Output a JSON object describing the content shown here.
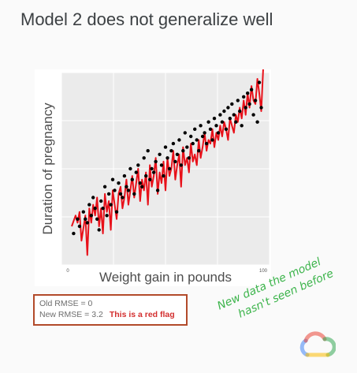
{
  "slide": {
    "title": "Model 2 does not generalize well"
  },
  "rmse_box": {
    "old_line": "Old RMSE = 0",
    "new_line": "New RMSE = 3.2",
    "flag_text": "This is a red flag"
  },
  "annotation": {
    "line1": "New data the model",
    "line2": "hasn't seen before",
    "color": "#3cb44b"
  },
  "logo": {
    "icon": "google-cloud-icon",
    "colors": [
      "#ea4335",
      "#fbbc04",
      "#34a853",
      "#4285f4"
    ]
  },
  "chart_data": {
    "type": "scatter",
    "xlabel": "Weight gain in pounds",
    "ylabel": "Duration of pregnancy",
    "xlim": [
      0,
      100
    ],
    "ylim": [
      0,
      100
    ],
    "x_ticks": [
      "0",
      "100"
    ],
    "grid": true,
    "background": "#ebebeb",
    "line_color": "#e8111a",
    "point_color": "#000000",
    "series": [
      {
        "type": "line",
        "x": [
          2,
          4,
          5,
          6,
          7,
          9,
          10,
          11,
          12,
          13,
          14,
          15,
          16,
          17,
          18,
          19,
          20,
          21,
          22,
          23,
          24,
          25,
          26,
          27,
          28,
          29,
          30,
          31,
          32,
          33,
          34,
          35,
          36,
          37,
          38,
          39,
          40,
          41,
          42,
          43,
          44,
          45,
          46,
          47,
          48,
          49,
          50,
          51,
          52,
          53,
          54,
          55,
          56,
          57,
          58,
          59,
          60,
          61,
          62,
          63,
          64,
          65,
          66,
          67,
          68,
          69,
          70,
          71,
          72,
          73,
          74,
          75,
          76,
          77,
          78,
          79,
          80,
          81,
          82,
          83,
          84,
          85,
          86,
          87,
          88,
          89,
          90,
          91,
          92,
          93,
          94,
          95,
          96,
          97,
          98,
          99,
          100
        ],
        "y": [
          18,
          24,
          20,
          26,
          10,
          24,
          2,
          28,
          20,
          30,
          24,
          34,
          18,
          28,
          14,
          36,
          26,
          32,
          16,
          38,
          30,
          22,
          36,
          40,
          28,
          34,
          44,
          30,
          38,
          46,
          34,
          42,
          50,
          32,
          44,
          38,
          48,
          30,
          52,
          40,
          46,
          56,
          36,
          48,
          42,
          54,
          38,
          56,
          46,
          50,
          60,
          44,
          52,
          58,
          40,
          62,
          52,
          56,
          48,
          64,
          54,
          58,
          52,
          66,
          56,
          62,
          70,
          60,
          66,
          64,
          72,
          62,
          70,
          66,
          74,
          68,
          76,
          72,
          66,
          78,
          74,
          70,
          80,
          76,
          84,
          78,
          88,
          80,
          92,
          84,
          96,
          88,
          86,
          100,
          92,
          82,
          106
        ]
      },
      {
        "type": "scatter",
        "x": [
          3,
          5,
          6,
          8,
          9,
          10,
          11,
          12,
          13,
          14,
          15,
          16,
          17,
          18,
          19,
          20,
          21,
          22,
          23,
          24,
          25,
          26,
          27,
          28,
          29,
          30,
          31,
          32,
          33,
          34,
          35,
          36,
          37,
          38,
          39,
          40,
          41,
          42,
          43,
          44,
          45,
          46,
          47,
          48,
          49,
          50,
          51,
          52,
          53,
          54,
          55,
          56,
          57,
          58,
          59,
          60,
          61,
          62,
          63,
          64,
          65,
          66,
          67,
          68,
          69,
          70,
          71,
          72,
          73,
          74,
          75,
          76,
          77,
          78,
          79,
          80,
          81,
          82,
          83,
          84,
          85,
          86,
          87,
          88,
          89,
          90,
          91,
          92,
          93,
          94,
          95,
          96,
          97,
          98,
          99
        ],
        "y": [
          14,
          22,
          18,
          26,
          22,
          20,
          30,
          24,
          34,
          28,
          22,
          16,
          32,
          28,
          40,
          24,
          36,
          30,
          44,
          38,
          26,
          42,
          36,
          34,
          46,
          40,
          38,
          50,
          44,
          36,
          48,
          52,
          42,
          40,
          56,
          46,
          60,
          44,
          50,
          48,
          54,
          38,
          58,
          52,
          46,
          62,
          56,
          50,
          60,
          64,
          54,
          58,
          66,
          52,
          60,
          70,
          62,
          56,
          68,
          64,
          72,
          66,
          60,
          74,
          68,
          70,
          64,
          76,
          72,
          66,
          78,
          74,
          70,
          80,
          76,
          82,
          72,
          84,
          78,
          86,
          80,
          76,
          88,
          82,
          74,
          90,
          84,
          92,
          86,
          94,
          80,
          88,
          76,
          98,
          84
        ]
      }
    ]
  }
}
